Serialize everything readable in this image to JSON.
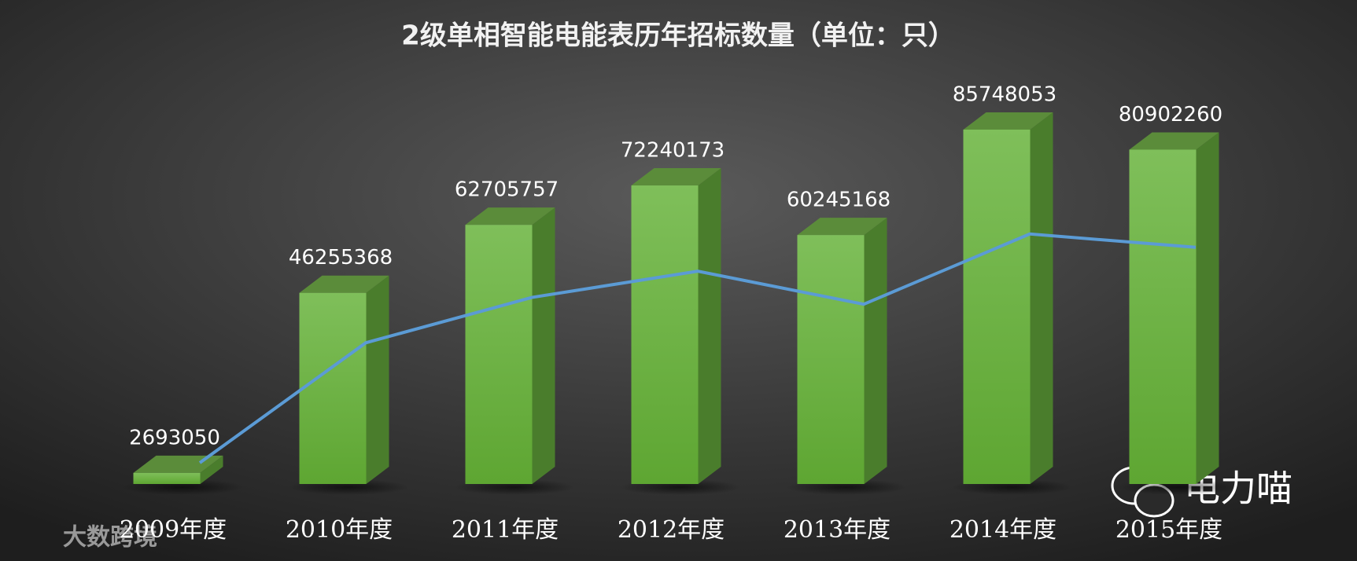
{
  "chart_data": {
    "type": "bar",
    "title": "2级单相智能电能表历年招标数量（单位：只）",
    "categories": [
      "2009年度",
      "2010年度",
      "2011年度",
      "2012年度",
      "2013年度",
      "2014年度",
      "2015年度"
    ],
    "values": [
      2693050,
      46255368,
      62705757,
      72240173,
      60245168,
      85748053,
      80902260
    ],
    "color": "#6db33f",
    "ylim": [
      0,
      100000000
    ],
    "line_color": "#5b9bd5",
    "y2lim": [
      -5000000,
      145000000
    ],
    "watermarks": [
      "电力喵",
      "大数跨境"
    ]
  }
}
